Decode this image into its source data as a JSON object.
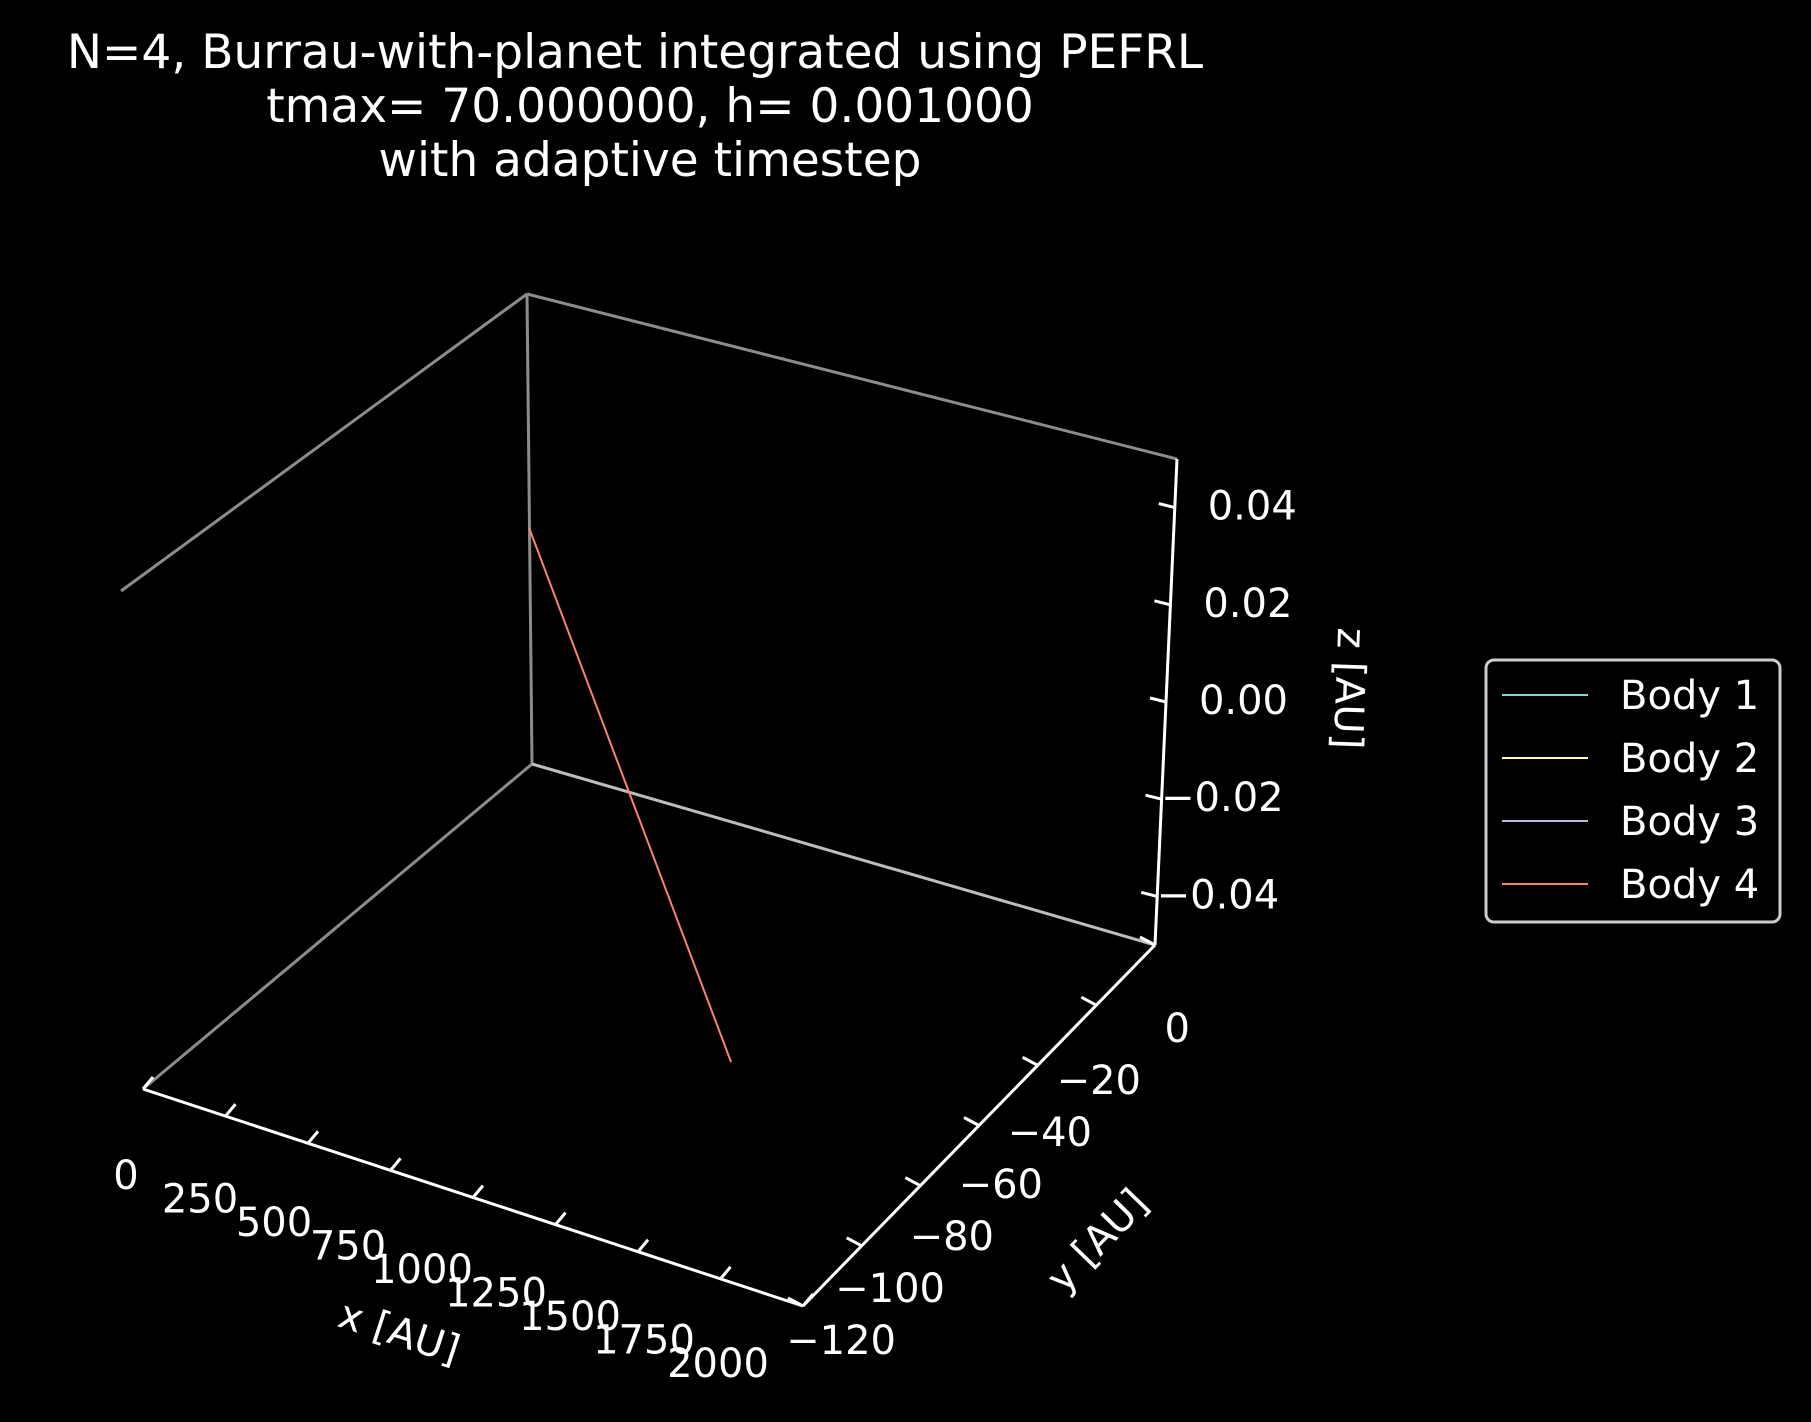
{
  "chart_data": {
    "type": "line",
    "projection": "3d",
    "title": [
      "N=4, Burrau-with-planet integrated using PEFRL",
      "tmax= 70.000000, h= 0.001000",
      "with adaptive timestep"
    ],
    "xlabel": "x [AU]",
    "ylabel": "y [AU]",
    "zlabel": "z [AU]",
    "xticks": [
      "0",
      "250",
      "500",
      "750",
      "1000",
      "1250",
      "1500",
      "1750",
      "2000"
    ],
    "yticks": [
      "0",
      "−20",
      "−40",
      "−60",
      "−80",
      "−100",
      "−120"
    ],
    "zticks": [
      "0.04",
      "0.02",
      "0.00",
      "−0.02",
      "−0.04"
    ],
    "xlim": [
      0,
      2000
    ],
    "ylim": [
      -120,
      0
    ],
    "zlim": [
      -0.05,
      0.05
    ],
    "grid": false,
    "legend_position": "right",
    "background": "#000000",
    "series": [
      {
        "name": "Body 1",
        "color": "#8dd3c7",
        "x": [
          0,
          0
        ],
        "y": [
          0,
          0
        ],
        "z": [
          0,
          0
        ]
      },
      {
        "name": "Body 2",
        "color": "#feffb3",
        "x": [
          0,
          0
        ],
        "y": [
          0,
          0
        ],
        "z": [
          0,
          0
        ]
      },
      {
        "name": "Body 3",
        "color": "#bfbbd9",
        "x": [
          0,
          2
        ],
        "y": [
          0,
          0
        ],
        "z": [
          0,
          0
        ]
      },
      {
        "name": "Body 4",
        "color": "#fa8174",
        "x": [
          0,
          2000
        ],
        "y": [
          0,
          -130
        ],
        "z": [
          0,
          0
        ]
      }
    ]
  }
}
